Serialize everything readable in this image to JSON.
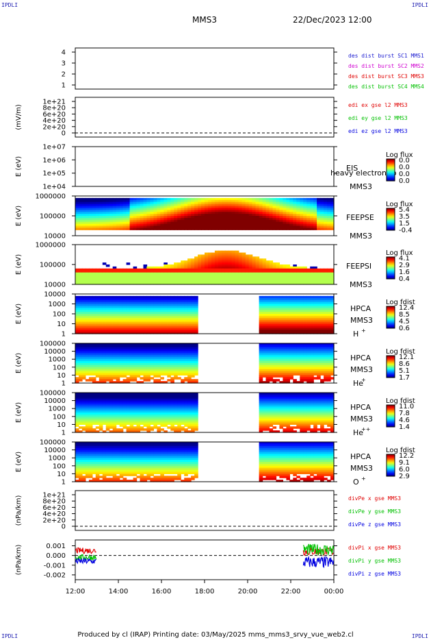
{
  "corners": {
    "top_left": "IPDLI",
    "top_right": "IPDLI",
    "bottom_left": "IPDLI",
    "bottom_right": "IPDLI"
  },
  "header": {
    "spacecraft": "MMS3",
    "datetime": "22/Dec/2023 12:00"
  },
  "footer": {
    "text": "Produced by cl (IRAP)   Printing date: 03/May/2025   mms_mms3_srvy_vue_web2.cl"
  },
  "colors": {
    "mms1": "#1a1ad0",
    "mms2": "#d000d0",
    "mms3": "#e00000",
    "mms4": "#00c000",
    "x": "#e00000",
    "y": "#00c000",
    "z": "#0000e0"
  },
  "chart_data": {
    "type": "multi-panel stack plot",
    "x_axis": {
      "ticks": [
        "12:00",
        "14:00",
        "16:00",
        "18:00",
        "20:00",
        "22:00",
        "00:00"
      ],
      "start": "12:00",
      "end": "00:00"
    },
    "panels": [
      {
        "id": "burst",
        "type": "timeline",
        "ylabel": "",
        "yticks": [
          "1",
          "2",
          "3",
          "4"
        ],
        "legend": [
          {
            "text": "des dist burst SC1 MMS1",
            "color": "mms1"
          },
          {
            "text": "des dist burst SC2 MMS2",
            "color": "mms2"
          },
          {
            "text": "des dist burst SC3 MMS3",
            "color": "mms3"
          },
          {
            "text": "des dist burst SC4 MMS4",
            "color": "mms4"
          }
        ]
      },
      {
        "id": "efield",
        "type": "line",
        "ylabel": "(mV/m)",
        "yticks": [
          "0",
          "2e+20",
          "4e+20",
          "6e+20",
          "8e+20",
          "1e+21"
        ],
        "dashed_zero": true,
        "legend": [
          {
            "text": "edi ex gse l2 MMS3",
            "color": "x"
          },
          {
            "text": "edi ey gse l2 MMS3",
            "color": "y"
          },
          {
            "text": "edi ez gse l2 MMS3",
            "color": "z"
          }
        ]
      },
      {
        "id": "eis",
        "type": "spectrogram",
        "ylabel": "E (eV)",
        "yticks": [
          "1e+04",
          "1e+05",
          "1e+06",
          "1e+07"
        ],
        "labels": [
          "EIS",
          "MMS3"
        ],
        "overlay_text": "heavy electron to",
        "colorbar": {
          "title": "Log flux",
          "ticks": [
            "0.0",
            "0.0",
            "0.0",
            "0.0"
          ]
        }
      },
      {
        "id": "feepse",
        "type": "spectrogram",
        "ylabel": "E (eV)",
        "yticks": [
          "10000",
          "100000",
          "1000000"
        ],
        "labels": [
          "FEEPSE",
          "MMS3"
        ],
        "colorbar": {
          "title": "Log flux",
          "ticks": [
            "5.4",
            "3.5",
            "1.5",
            "-0.4"
          ]
        }
      },
      {
        "id": "feepsi",
        "type": "spectrogram",
        "ylabel": "E (eV)",
        "yticks": [
          "10000",
          "100000",
          "1000000"
        ],
        "labels": [
          "FEEPSI",
          "MMS3"
        ],
        "colorbar": {
          "title": "Log flux",
          "ticks": [
            "4.1",
            "2.9",
            "1.6",
            "0.4"
          ]
        }
      },
      {
        "id": "hpca_h",
        "type": "spectrogram",
        "ylabel": "E (eV)",
        "yticks": [
          "1",
          "10",
          "100",
          "1000",
          "10000"
        ],
        "labels": [
          "HPCA",
          "MMS3"
        ],
        "species": "H",
        "charge": "+",
        "gap": [
          "17:45",
          "20:35"
        ],
        "colorbar": {
          "title": "Log fdist",
          "ticks": [
            "12.4",
            "8.5",
            "4.5",
            "0.6"
          ]
        }
      },
      {
        "id": "hpca_he",
        "type": "spectrogram",
        "ylabel": "E (eV)",
        "yticks": [
          "1",
          "10",
          "100",
          "1000",
          "10000",
          "100000"
        ],
        "labels": [
          "HPCA",
          "MMS3"
        ],
        "species": "He",
        "charge": "+",
        "gap": [
          "17:45",
          "20:35"
        ],
        "colorbar": {
          "title": "Log fdist",
          "ticks": [
            "12.1",
            "8.6",
            "5.1",
            "1.7"
          ]
        }
      },
      {
        "id": "hpca_he2",
        "type": "spectrogram",
        "ylabel": "E (eV)",
        "yticks": [
          "1",
          "10",
          "100",
          "1000",
          "10000",
          "100000"
        ],
        "labels": [
          "HPCA",
          "MMS3"
        ],
        "species": "He",
        "charge": "++",
        "gap": [
          "17:45",
          "20:35"
        ],
        "colorbar": {
          "title": "Log fdist",
          "ticks": [
            "11.0",
            "7.8",
            "4.6",
            "1.4"
          ]
        }
      },
      {
        "id": "hpca_o",
        "type": "spectrogram",
        "ylabel": "E (eV)",
        "yticks": [
          "1",
          "10",
          "100",
          "1000",
          "10000",
          "100000"
        ],
        "labels": [
          "HPCA",
          "MMS3"
        ],
        "species": "O",
        "charge": "+",
        "gap": [
          "17:45",
          "20:35"
        ],
        "colorbar": {
          "title": "Log fdist",
          "ticks": [
            "12.2",
            "9.1",
            "6.0",
            "2.9"
          ]
        }
      },
      {
        "id": "divpe",
        "type": "line",
        "ylabel": "(nPa/km)",
        "yticks": [
          "0",
          "2e+20",
          "4e+20",
          "6e+20",
          "8e+20",
          "1e+21"
        ],
        "dashed_zero": true,
        "legend": [
          {
            "text": "divPe x gse MMS3",
            "color": "x"
          },
          {
            "text": "divPe y gse MMS3",
            "color": "y"
          },
          {
            "text": "divPe z gse MMS3",
            "color": "z"
          }
        ]
      },
      {
        "id": "divpi",
        "type": "line",
        "ylabel": "(nPa/km)",
        "yticks": [
          "-0.002",
          "-0.001",
          "0.000",
          "0.001"
        ],
        "dashed_zero": true,
        "ylim": [
          -0.0025,
          0.0016
        ],
        "legend": [
          {
            "text": "divPi x gse MMS3",
            "color": "x"
          },
          {
            "text": "divPi y gse MMS3",
            "color": "y"
          },
          {
            "text": "divPi z gse MMS3",
            "color": "z"
          }
        ],
        "series": [
          {
            "name": "divPi x gse MMS3",
            "color": "x",
            "segments": [
              {
                "from": "12:00",
                "to": "13:00",
                "mean": 0.0005,
                "spread": 0.0003
              },
              {
                "from": "22:35",
                "to": "00:00",
                "mean": 0.0004,
                "spread": 0.0004
              }
            ]
          },
          {
            "name": "divPi y gse MMS3",
            "color": "y",
            "segments": [
              {
                "from": "12:00",
                "to": "13:00",
                "mean": -0.0002,
                "spread": 0.0003
              },
              {
                "from": "22:35",
                "to": "00:00",
                "mean": 0.0006,
                "spread": 0.0006
              }
            ]
          },
          {
            "name": "divPi z gse MMS3",
            "color": "z",
            "segments": [
              {
                "from": "12:00",
                "to": "13:00",
                "mean": -0.0006,
                "spread": 0.0003
              },
              {
                "from": "22:35",
                "to": "00:00",
                "mean": -0.0007,
                "spread": 0.0006
              }
            ]
          }
        ]
      }
    ]
  }
}
